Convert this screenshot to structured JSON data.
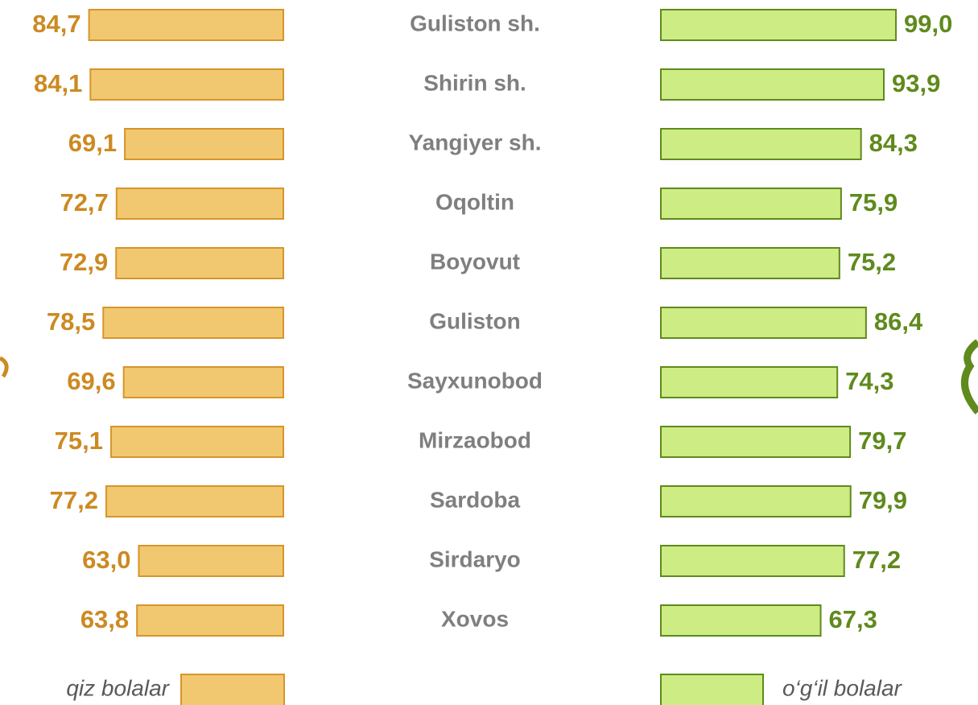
{
  "chart_data": {
    "type": "butterfly",
    "categories": [
      "Guliston sh.",
      "Shirin sh.",
      "Yangiyer sh.",
      "Oqoltin",
      "Boyovut",
      "Guliston",
      "Sayxunobod",
      "Mirzaobod",
      "Sardoba",
      "Sirdaryo",
      "Xovos"
    ],
    "series": [
      {
        "name": "qiz bolalar",
        "color": "#f1c86f",
        "edge": "#d6952c",
        "label_color": "#cc8a22",
        "side": "left",
        "values": [
          84.7,
          84.1,
          69.1,
          72.7,
          72.9,
          78.5,
          69.6,
          75.1,
          77.2,
          63.0,
          63.8
        ],
        "value_labels": [
          "84,7",
          "84,1",
          "69,1",
          "72,7",
          "72,9",
          "78,5",
          "69,6",
          "75,1",
          "77,2",
          "63,0",
          "63,8"
        ]
      },
      {
        "name": "o‘g‘il bolalar",
        "color": "#cdec84",
        "edge": "#5f8a1c",
        "label_color": "#5f8a1c",
        "side": "right",
        "values": [
          99.0,
          93.9,
          84.3,
          75.9,
          75.2,
          86.4,
          74.3,
          79.7,
          79.9,
          77.2,
          67.3
        ],
        "value_labels": [
          "99,0",
          "93,9",
          "84,3",
          "75,9",
          "75,2",
          "86,4",
          "74,3",
          "79,7",
          "79,9",
          "77,2",
          "67,3"
        ]
      }
    ]
  }
}
